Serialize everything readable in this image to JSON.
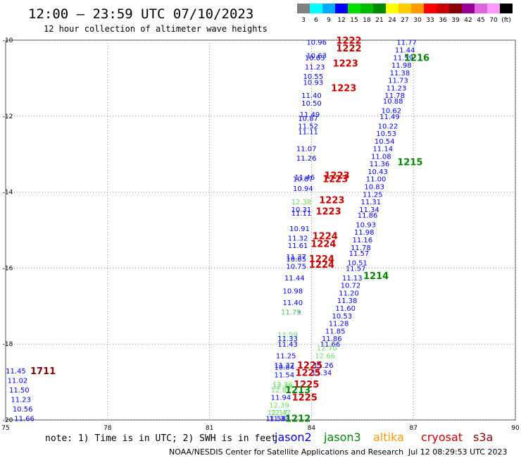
{
  "header": {
    "title": "12:00 — 23:59 UTC 07/10/2023",
    "subtitle": "12 hour collection of altimeter wave heights"
  },
  "colorbar": {
    "colors": [
      "#808080",
      "#00ffff",
      "#00aaff",
      "#0000ff",
      "#00dd00",
      "#00bb00",
      "#008800",
      "#ffff00",
      "#ffcc00",
      "#ff9900",
      "#ff0000",
      "#cc0000",
      "#880000",
      "#990099",
      "#dd66dd",
      "#ff99ff",
      "#000000"
    ],
    "labels": [
      "3",
      "6",
      "9",
      "12",
      "15",
      "18",
      "21",
      "24",
      "27",
      "30",
      "33",
      "36",
      "39",
      "42",
      "45",
      "70",
      "(ft)"
    ]
  },
  "footer": {
    "note": "note: 1) Time is in UTC; 2) SWH is in feet",
    "legend": [
      {
        "name": "jason2",
        "color": "#0000ff"
      },
      {
        "name": "jason3",
        "color": "#008800"
      },
      {
        "name": "altika",
        "color": "#ff9900"
      },
      {
        "name": "cryosat",
        "color": "#cc0000"
      },
      {
        "name": "s3a",
        "color": "#990000"
      }
    ],
    "credit": "NOAA/NESDIS Center for Satellite Applications and Research",
    "timestamp": "Jul 12 08:29:53 UTC 2023"
  },
  "chart_data": {
    "type": "scatter",
    "title": "12:00 — 23:59 UTC 07/10/2023",
    "xlim": [
      75,
      90
    ],
    "ylim": [
      -20,
      -10
    ],
    "x_ticks": [
      "75",
      "78",
      "81",
      "84",
      "87",
      "90"
    ],
    "y_ticks": [
      "-10",
      "-12",
      "-14",
      "-16",
      "-18",
      "-20"
    ],
    "grid": true,
    "value_points": [
      {
        "x": 84.15,
        "y": -10.05,
        "label": "10.96",
        "color": "#0000ff"
      },
      {
        "x": 84.15,
        "y": -10.4,
        "label": "10.63",
        "color": "#0000ff"
      },
      {
        "x": 84.1,
        "y": -10.45,
        "label": "10.83",
        "color": "#0000ff"
      },
      {
        "x": 84.1,
        "y": -10.7,
        "label": "11.23",
        "color": "#0000ff"
      },
      {
        "x": 84.05,
        "y": -10.95,
        "label": "10.55",
        "color": "#0000ff"
      },
      {
        "x": 84.05,
        "y": -11.1,
        "label": "10.93",
        "color": "#0000ff"
      },
      {
        "x": 84.0,
        "y": -11.45,
        "label": "11.40",
        "color": "#0000ff"
      },
      {
        "x": 84.0,
        "y": -11.65,
        "label": "10.50",
        "color": "#0000ff"
      },
      {
        "x": 83.95,
        "y": -11.95,
        "label": "11.49",
        "color": "#0000ff"
      },
      {
        "x": 83.9,
        "y": -12.05,
        "label": "10.87",
        "color": "#0000ff"
      },
      {
        "x": 83.9,
        "y": -12.25,
        "label": "11.52",
        "color": "#0000ff"
      },
      {
        "x": 83.9,
        "y": -12.4,
        "label": "11.11",
        "color": "#0000ff"
      },
      {
        "x": 83.85,
        "y": -12.85,
        "label": "11.07",
        "color": "#0000ff"
      },
      {
        "x": 83.85,
        "y": -13.1,
        "label": "11.26",
        "color": "#0000ff"
      },
      {
        "x": 83.8,
        "y": -13.6,
        "label": "11.46",
        "color": "#0000ff"
      },
      {
        "x": 83.75,
        "y": -13.65,
        "label": "10.87",
        "color": "#0000ff"
      },
      {
        "x": 83.75,
        "y": -13.9,
        "label": "10.94",
        "color": "#0000ff"
      },
      {
        "x": 83.7,
        "y": -14.25,
        "label": "12.38",
        "color": "#66dd66"
      },
      {
        "x": 83.7,
        "y": -14.45,
        "label": "10.31",
        "color": "#0000ff"
      },
      {
        "x": 83.7,
        "y": -14.55,
        "label": "11.11",
        "color": "#0000ff"
      },
      {
        "x": 83.65,
        "y": -14.95,
        "label": "10.91",
        "color": "#0000ff"
      },
      {
        "x": 83.6,
        "y": -15.2,
        "label": "11.32",
        "color": "#0000ff"
      },
      {
        "x": 83.6,
        "y": -15.4,
        "label": "11.61",
        "color": "#0000ff"
      },
      {
        "x": 83.55,
        "y": -15.7,
        "label": "11.37",
        "color": "#0000ff"
      },
      {
        "x": 83.55,
        "y": -15.75,
        "label": "10.85",
        "color": "#0000ff"
      },
      {
        "x": 83.55,
        "y": -15.95,
        "label": "10.75",
        "color": "#0000ff"
      },
      {
        "x": 83.5,
        "y": -16.25,
        "label": "11.44",
        "color": "#0000ff"
      },
      {
        "x": 83.45,
        "y": -16.6,
        "label": "10.98",
        "color": "#0000ff"
      },
      {
        "x": 83.45,
        "y": -16.9,
        "label": "11.40",
        "color": "#0000ff"
      },
      {
        "x": 83.4,
        "y": -17.15,
        "label": "11.73",
        "color": "#0000ff"
      },
      {
        "x": 83.4,
        "y": -17.15,
        "label": "11.79",
        "color": "#66dd66"
      },
      {
        "x": 83.3,
        "y": -17.75,
        "label": "11.59",
        "color": "#66dd66"
      },
      {
        "x": 83.3,
        "y": -17.85,
        "label": "11.33",
        "color": "#0000ff"
      },
      {
        "x": 83.3,
        "y": -18.0,
        "label": "11.43",
        "color": "#0000ff"
      },
      {
        "x": 83.25,
        "y": -18.3,
        "label": "11.25",
        "color": "#0000ff"
      },
      {
        "x": 83.2,
        "y": -18.55,
        "label": "11.37",
        "color": "#0000ff"
      },
      {
        "x": 83.2,
        "y": -18.6,
        "label": "10.84",
        "color": "#0000ff"
      },
      {
        "x": 83.2,
        "y": -18.8,
        "label": "11.54",
        "color": "#0000ff"
      },
      {
        "x": 83.15,
        "y": -19.05,
        "label": "12.26",
        "color": "#66dd66"
      },
      {
        "x": 83.15,
        "y": -19.1,
        "label": "12.38",
        "color": "#66dd66"
      },
      {
        "x": 83.1,
        "y": -19.2,
        "label": "12.87",
        "color": "#66dd66"
      },
      {
        "x": 83.1,
        "y": -19.4,
        "label": "11.94",
        "color": "#0000ff"
      },
      {
        "x": 83.05,
        "y": -19.6,
        "label": "12.39",
        "color": "#66dd66"
      },
      {
        "x": 83.0,
        "y": -19.8,
        "label": "12.17",
        "color": "#66dd66"
      },
      {
        "x": 83.1,
        "y": -19.8,
        "label": "12.47",
        "color": "#66dd66"
      },
      {
        "x": 82.95,
        "y": -19.95,
        "label": "11.58",
        "color": "#0000ff"
      },
      {
        "x": 83.05,
        "y": -19.95,
        "label": "11.33",
        "color": "#0000ff"
      },
      {
        "x": 86.8,
        "y": -10.05,
        "label": "11.77",
        "color": "#0000ff"
      },
      {
        "x": 86.75,
        "y": -10.25,
        "label": "11.44",
        "color": "#0000ff"
      },
      {
        "x": 86.7,
        "y": -10.45,
        "label": "11.59",
        "color": "#0000ff"
      },
      {
        "x": 86.65,
        "y": -10.65,
        "label": "11.98",
        "color": "#0000ff"
      },
      {
        "x": 86.6,
        "y": -10.85,
        "label": "11.38",
        "color": "#0000ff"
      },
      {
        "x": 86.55,
        "y": -11.05,
        "label": "11.73",
        "color": "#0000ff"
      },
      {
        "x": 86.5,
        "y": -11.25,
        "label": "11.23",
        "color": "#0000ff"
      },
      {
        "x": 86.45,
        "y": -11.45,
        "label": "11.78",
        "color": "#0000ff"
      },
      {
        "x": 86.4,
        "y": -11.6,
        "label": "10.88",
        "color": "#0000ff"
      },
      {
        "x": 86.35,
        "y": -11.85,
        "label": "10.62",
        "color": "#0000ff"
      },
      {
        "x": 86.3,
        "y": -12.0,
        "label": "11.49",
        "color": "#0000ff"
      },
      {
        "x": 86.25,
        "y": -12.25,
        "label": "10.22",
        "color": "#0000ff"
      },
      {
        "x": 86.2,
        "y": -12.45,
        "label": "10.53",
        "color": "#0000ff"
      },
      {
        "x": 86.15,
        "y": -12.65,
        "label": "10.54",
        "color": "#0000ff"
      },
      {
        "x": 86.1,
        "y": -12.85,
        "label": "11.14",
        "color": "#0000ff"
      },
      {
        "x": 86.05,
        "y": -13.05,
        "label": "11.08",
        "color": "#0000ff"
      },
      {
        "x": 86.0,
        "y": -13.25,
        "label": "11.36",
        "color": "#0000ff"
      },
      {
        "x": 85.95,
        "y": -13.45,
        "label": "10.43",
        "color": "#0000ff"
      },
      {
        "x": 85.9,
        "y": -13.65,
        "label": "11.00",
        "color": "#0000ff"
      },
      {
        "x": 85.85,
        "y": -13.85,
        "label": "10.83",
        "color": "#0000ff"
      },
      {
        "x": 85.8,
        "y": -14.05,
        "label": "11.25",
        "color": "#0000ff"
      },
      {
        "x": 85.75,
        "y": -14.25,
        "label": "11.31",
        "color": "#0000ff"
      },
      {
        "x": 85.7,
        "y": -14.45,
        "label": "11.34",
        "color": "#0000ff"
      },
      {
        "x": 85.65,
        "y": -14.6,
        "label": "11.86",
        "color": "#0000ff"
      },
      {
        "x": 85.6,
        "y": -14.85,
        "label": "10.93",
        "color": "#0000ff"
      },
      {
        "x": 85.55,
        "y": -15.05,
        "label": "11.98",
        "color": "#0000ff"
      },
      {
        "x": 85.5,
        "y": -15.25,
        "label": "11.16",
        "color": "#0000ff"
      },
      {
        "x": 85.45,
        "y": -15.45,
        "label": "11.78",
        "color": "#0000ff"
      },
      {
        "x": 85.4,
        "y": -15.6,
        "label": "11.57",
        "color": "#0000ff"
      },
      {
        "x": 85.35,
        "y": -15.85,
        "label": "10.51",
        "color": "#0000ff"
      },
      {
        "x": 85.3,
        "y": -16.0,
        "label": "11.57",
        "color": "#0000ff"
      },
      {
        "x": 85.2,
        "y": -16.25,
        "label": "11.13",
        "color": "#0000ff"
      },
      {
        "x": 85.15,
        "y": -16.45,
        "label": "10.72",
        "color": "#0000ff"
      },
      {
        "x": 85.1,
        "y": -16.65,
        "label": "11.20",
        "color": "#0000ff"
      },
      {
        "x": 85.05,
        "y": -16.85,
        "label": "11.38",
        "color": "#0000ff"
      },
      {
        "x": 85.0,
        "y": -17.05,
        "label": "11.60",
        "color": "#0000ff"
      },
      {
        "x": 84.9,
        "y": -17.25,
        "label": "10.53",
        "color": "#0000ff"
      },
      {
        "x": 84.8,
        "y": -17.45,
        "label": "11.28",
        "color": "#0000ff"
      },
      {
        "x": 84.7,
        "y": -17.65,
        "label": "11.85",
        "color": "#0000ff"
      },
      {
        "x": 84.6,
        "y": -17.85,
        "label": "11.86",
        "color": "#0000ff"
      },
      {
        "x": 84.55,
        "y": -18.0,
        "label": "11.66",
        "color": "#0000ff"
      },
      {
        "x": 84.45,
        "y": -18.1,
        "label": "12.70",
        "color": "#66dd66"
      },
      {
        "x": 84.4,
        "y": -18.3,
        "label": "12.66",
        "color": "#66dd66"
      },
      {
        "x": 84.35,
        "y": -18.55,
        "label": "11.26",
        "color": "#0000ff"
      },
      {
        "x": 84.3,
        "y": -18.75,
        "label": "11.34",
        "color": "#0000ff"
      },
      {
        "x": 75.3,
        "y": -18.7,
        "label": "11.45",
        "color": "#0000ff"
      },
      {
        "x": 75.35,
        "y": -18.95,
        "label": "11.02",
        "color": "#0000ff"
      },
      {
        "x": 75.4,
        "y": -19.2,
        "label": "11.50",
        "color": "#0000ff"
      },
      {
        "x": 75.45,
        "y": -19.45,
        "label": "11.23",
        "color": "#0000ff"
      },
      {
        "x": 75.5,
        "y": -19.7,
        "label": "10.56",
        "color": "#0000ff"
      },
      {
        "x": 75.55,
        "y": -19.95,
        "label": "11.66",
        "color": "#0000ff"
      }
    ],
    "time_labels": [
      {
        "x": 85.1,
        "y": -10.0,
        "label": "1222",
        "color": "#cc0000"
      },
      {
        "x": 85.1,
        "y": -10.2,
        "label": "1222",
        "color": "#cc0000"
      },
      {
        "x": 85.0,
        "y": -10.6,
        "label": "1223",
        "color": "#cc0000"
      },
      {
        "x": 84.95,
        "y": -11.25,
        "label": "1223",
        "color": "#cc0000"
      },
      {
        "x": 84.75,
        "y": -13.55,
        "label": "1223",
        "color": "#cc0000"
      },
      {
        "x": 84.7,
        "y": -13.65,
        "label": "1223",
        "color": "#cc0000"
      },
      {
        "x": 84.6,
        "y": -14.2,
        "label": "1223",
        "color": "#cc0000"
      },
      {
        "x": 84.5,
        "y": -14.5,
        "label": "1223",
        "color": "#cc0000"
      },
      {
        "x": 84.4,
        "y": -15.15,
        "label": "1224",
        "color": "#cc0000"
      },
      {
        "x": 84.35,
        "y": -15.35,
        "label": "1224",
        "color": "#cc0000"
      },
      {
        "x": 84.3,
        "y": -15.75,
        "label": "1224",
        "color": "#cc0000"
      },
      {
        "x": 84.3,
        "y": -15.9,
        "label": "1224",
        "color": "#cc0000"
      },
      {
        "x": 83.95,
        "y": -18.55,
        "label": "1225",
        "color": "#cc0000"
      },
      {
        "x": 83.9,
        "y": -18.75,
        "label": "1225",
        "color": "#cc0000"
      },
      {
        "x": 83.85,
        "y": -19.05,
        "label": "1225",
        "color": "#cc0000"
      },
      {
        "x": 83.8,
        "y": -19.4,
        "label": "1225",
        "color": "#cc0000"
      },
      {
        "x": 87.1,
        "y": -10.45,
        "label": "1216",
        "color": "#008800"
      },
      {
        "x": 86.9,
        "y": -13.2,
        "label": "1215",
        "color": "#008800"
      },
      {
        "x": 85.9,
        "y": -16.2,
        "label": "1214",
        "color": "#008800"
      },
      {
        "x": 83.6,
        "y": -19.2,
        "label": "1213",
        "color": "#008800"
      },
      {
        "x": 83.6,
        "y": -19.95,
        "label": "1212",
        "color": "#008800"
      },
      {
        "x": 76.1,
        "y": -18.7,
        "label": "1711",
        "color": "#880000"
      }
    ]
  }
}
